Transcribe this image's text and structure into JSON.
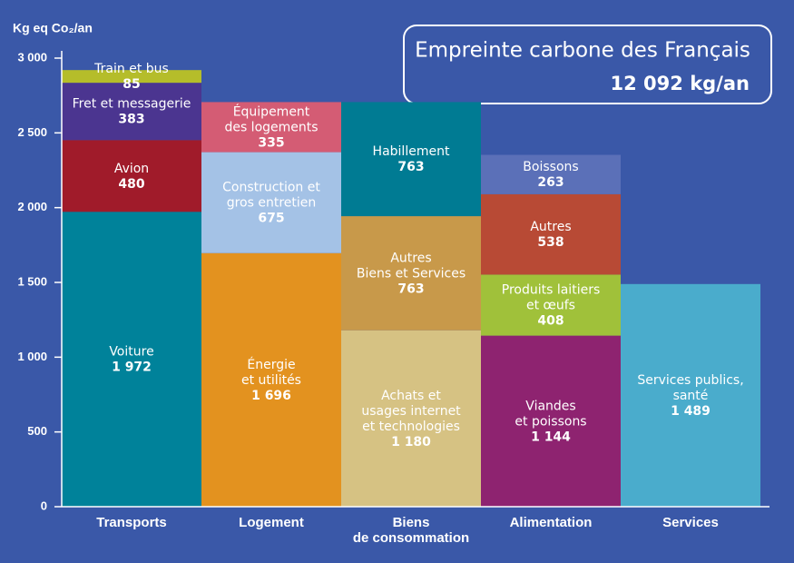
{
  "chart_data": {
    "type": "stacked-bar",
    "title": "Empreinte carbone des Français",
    "subtitle": "12  092 kg/an",
    "y_label": "Kg eq Co₂/an",
    "ylim": [
      0,
      3000
    ],
    "yticks": [
      0,
      500,
      {
        "value": 1000,
        "label": "1 000"
      },
      {
        "value": 1500,
        "label": "1 500"
      },
      {
        "value": 2000,
        "label": "2 000"
      },
      {
        "value": 2500,
        "label": "2 500"
      },
      {
        "value": 3000,
        "label": "3 000"
      }
    ],
    "stacks": [
      {
        "category": "Transports",
        "segments": [
          {
            "name": "Voiture",
            "value": 1972,
            "value_label": "1 972",
            "color": "#00829a"
          },
          {
            "name": "Avion",
            "value": 480,
            "color": "#a01b2a"
          },
          {
            "name": "Fret et messagerie",
            "value": 383,
            "color": "#4b3590"
          },
          {
            "name": "Train et bus",
            "value": 85,
            "color": "#b5bd2a"
          }
        ]
      },
      {
        "category": "Logement",
        "segments": [
          {
            "name": "Énergie\net utilités",
            "value": 1696,
            "value_label": "1 696",
            "color": "#e3921f"
          },
          {
            "name": "Construction et\ngros entretien",
            "value": 675,
            "color": "#a4c2e6"
          },
          {
            "name": "Équipement\ndes logements",
            "value": 335,
            "color": "#d45c74"
          }
        ]
      },
      {
        "category": "Biens\nde consommation",
        "segments": [
          {
            "name": "Achats et\nusages internet\net technologies",
            "value": 1180,
            "value_label": "1 180",
            "color": "#d6c283"
          },
          {
            "name": "Autres\nBiens et Services",
            "value": 763,
            "color": "#c8994a"
          },
          {
            "name": "Habillement",
            "value": 763,
            "color": "#007b93"
          }
        ]
      },
      {
        "category": "Alimentation",
        "segments": [
          {
            "name": "Viandes\net poissons",
            "value": 1144,
            "value_label": "1 144",
            "color": "#8e2370"
          },
          {
            "name": "Produits laitiers\net œufs",
            "value": 408,
            "color": "#a0c13a"
          },
          {
            "name": "Autres",
            "value": 538,
            "color": "#b84a35"
          },
          {
            "name": "Boissons",
            "value": 263,
            "color": "#5b70b8"
          }
        ]
      },
      {
        "category": "Services",
        "segments": [
          {
            "name": "Services publics,\nsanté",
            "value": 1489,
            "value_label": "1 489",
            "color": "#4aaccc"
          }
        ]
      }
    ]
  }
}
